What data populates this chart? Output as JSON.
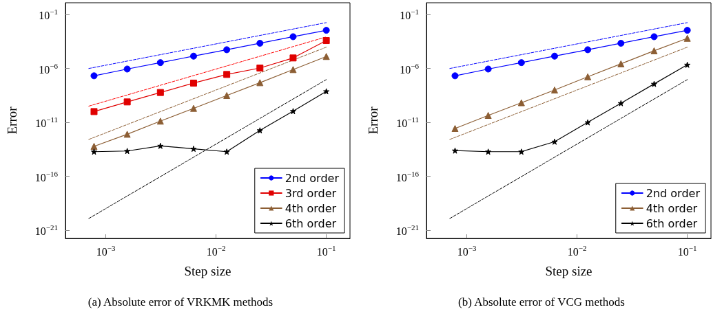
{
  "chart_data": [
    {
      "type": "line",
      "title": "(a) Absolute error of VRKMK methods",
      "xlabel": "Step size",
      "ylabel": "Error",
      "log": "xy",
      "grid": false,
      "legend": "bottom right",
      "xlim": [
        0.00043,
        0.164
      ],
      "ylim": [
        1.7e-22,
        1.26
      ],
      "xticks": [
        {
          "value": 0.001,
          "label": "10$^{−3}$"
        },
        {
          "value": 0.01,
          "label": "10$^{−2}$"
        },
        {
          "value": 0.1,
          "label": "10$^{−1}$"
        }
      ],
      "yticks": [
        {
          "value": 1e-21,
          "label": "10$^{−21}$"
        },
        {
          "value": 1e-16,
          "label": "10$^{−16}$"
        },
        {
          "value": 1e-11,
          "label": "10$^{−11}$"
        },
        {
          "value": 1e-06,
          "label": "10$^{−6}$"
        },
        {
          "value": 0.1,
          "label": "10$^{−1}$"
        }
      ],
      "series": [
        {
          "name": "2nd order",
          "color": "#0000ff",
          "marker": "circle",
          "line_style": "solid",
          "x": [
            0.00078125,
            0.0015625,
            0.003125,
            0.00625,
            0.0125,
            0.025,
            0.05,
            0.1
          ],
          "values": [
            2.1e-07,
            8.9e-07,
            3.5e-06,
            1.4e-05,
            5.5e-05,
            0.00022,
            0.00089,
            0.0035
          ]
        },
        {
          "name": "3rd order",
          "color": "#e00000",
          "marker": "square",
          "line_style": "solid",
          "x": [
            0.00078125,
            0.0015625,
            0.003125,
            0.00625,
            0.0125,
            0.025,
            0.05,
            0.1
          ],
          "values": [
            1e-10,
            7.9e-10,
            5.9e-09,
            4.4e-08,
            2.8e-07,
            1.1e-06,
            9.5e-06,
            0.00039
          ]
        },
        {
          "name": "4th order",
          "color": "#8c5e34",
          "marker": "triangle",
          "line_style": "solid",
          "x": [
            0.00078125,
            0.0015625,
            0.003125,
            0.00625,
            0.0125,
            0.025,
            0.05,
            0.1
          ],
          "values": [
            6e-14,
            7.9e-13,
            1.3e-11,
            2e-10,
            3.1e-09,
            4.8e-08,
            7.9e-07,
            1.3e-05
          ]
        },
        {
          "name": "6th order",
          "color": "#000000",
          "marker": "star",
          "line_style": "solid",
          "x": [
            0.00078125,
            0.0015625,
            0.003125,
            0.00625,
            0.0125,
            0.025,
            0.05,
            0.1
          ],
          "values": [
            1.9e-14,
            2.2e-14,
            6.6e-14,
            3.5e-14,
            1.9e-14,
            1.8e-12,
            1.1e-10,
            7.6e-09
          ]
        },
        {
          "color": "#0000ff",
          "marker": "none",
          "line_style": "dashed",
          "x": [
            0.0007,
            0.1
          ],
          "values": [
            1e-06,
            0.018
          ]
        },
        {
          "color": "#ff0000",
          "marker": "none",
          "line_style": "dashed",
          "x": [
            0.0007,
            0.1
          ],
          "values": [
            3.2e-10,
            0.00085
          ]
        },
        {
          "color": "#8c5e34",
          "marker": "none",
          "line_style": "dashed",
          "x": [
            0.0007,
            0.1
          ],
          "values": [
            2.6e-13,
            9.5e-05
          ]
        },
        {
          "color": "#000000",
          "marker": "none",
          "line_style": "dashed",
          "x": [
            0.0007,
            0.1
          ],
          "values": [
            1.2e-20,
            9.3e-08
          ]
        }
      ]
    },
    {
      "type": "line",
      "title": "(b) Absolute error of VCG methods",
      "xlabel": "Step size",
      "ylabel": "Error",
      "log": "xy",
      "grid": false,
      "legend": "bottom right",
      "xlim": [
        0.00043,
        0.164
      ],
      "ylim": [
        1.7e-22,
        1.26
      ],
      "xticks": [
        {
          "value": 0.001,
          "label": "10$^{−3}$"
        },
        {
          "value": 0.01,
          "label": "10$^{−2}$"
        },
        {
          "value": 0.1,
          "label": "10$^{−1}$"
        }
      ],
      "yticks": [
        {
          "value": 1e-21,
          "label": "10$^{−21}$"
        },
        {
          "value": 1e-16,
          "label": "10$^{−16}$"
        },
        {
          "value": 1e-11,
          "label": "10$^{−11}$"
        },
        {
          "value": 1e-06,
          "label": "10$^{−6}$"
        },
        {
          "value": 0.1,
          "label": "10$^{−1}$"
        }
      ],
      "series": [
        {
          "name": "2nd order",
          "color": "#0000ff",
          "marker": "circle",
          "line_style": "solid",
          "x": [
            0.00078125,
            0.0015625,
            0.003125,
            0.00625,
            0.0125,
            0.025,
            0.05,
            0.1
          ],
          "values": [
            2.1e-07,
            8.9e-07,
            3.5e-06,
            1.4e-05,
            5.5e-05,
            0.00022,
            0.00089,
            0.0035
          ]
        },
        {
          "name": "4th order",
          "color": "#8c5e34",
          "marker": "triangle",
          "line_style": "solid",
          "x": [
            0.00078125,
            0.0015625,
            0.003125,
            0.00625,
            0.0125,
            0.025,
            0.05,
            0.1
          ],
          "values": [
            2.7e-12,
            4.4e-11,
            6.6e-10,
            1e-08,
            1.7e-07,
            2.7e-06,
            4.4e-05,
            0.00063
          ]
        },
        {
          "name": "6th order",
          "color": "#000000",
          "marker": "star",
          "line_style": "solid",
          "x": [
            0.00078125,
            0.0015625,
            0.003125,
            0.00625,
            0.0125,
            0.025,
            0.05,
            0.1
          ],
          "values": [
            2.4e-14,
            1.9e-14,
            1.9e-14,
            1.6e-13,
            1e-11,
            6e-10,
            3.7e-08,
            2.2e-06
          ]
        },
        {
          "color": "#0000ff",
          "marker": "none",
          "line_style": "dashed",
          "x": [
            0.0007,
            0.1
          ],
          "values": [
            1e-06,
            0.018
          ]
        },
        {
          "color": "#8c5e34",
          "marker": "none",
          "line_style": "dashed",
          "x": [
            0.0007,
            0.1
          ],
          "values": [
            2.6e-13,
            9.5e-05
          ]
        },
        {
          "color": "#000000",
          "marker": "none",
          "line_style": "dashed",
          "x": [
            0.0007,
            0.1
          ],
          "values": [
            1.2e-20,
            9.3e-08
          ]
        }
      ]
    }
  ]
}
